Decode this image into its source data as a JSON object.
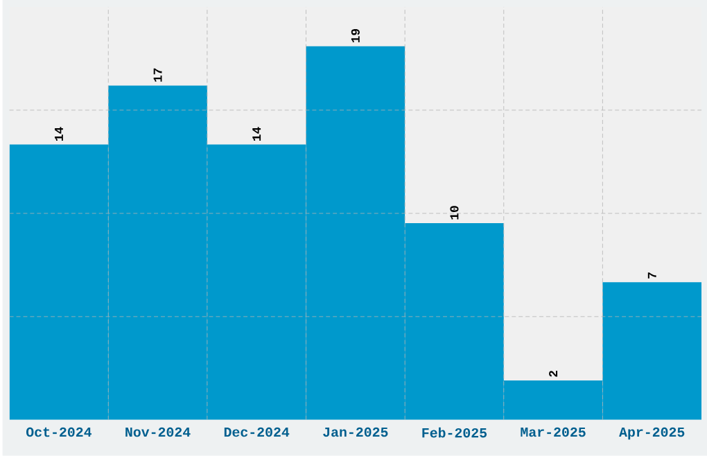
{
  "chart_data": {
    "type": "bar",
    "categories": [
      "Oct-2024",
      "Nov-2024",
      "Dec-2024",
      "Jan-2025",
      "Feb-2025",
      "Mar-2025",
      "Apr-2025"
    ],
    "values": [
      14,
      17,
      14,
      19,
      10,
      2,
      7
    ],
    "color": "#0099cc",
    "ylim": [
      0,
      21
    ],
    "yticks": [
      {
        "value": 5.25,
        "label": null
      },
      {
        "value": 10.5,
        "label": null
      },
      {
        "value": 15.75,
        "label": null
      }
    ],
    "tick_labels": "x",
    "grid": true,
    "data_labels": true
  }
}
